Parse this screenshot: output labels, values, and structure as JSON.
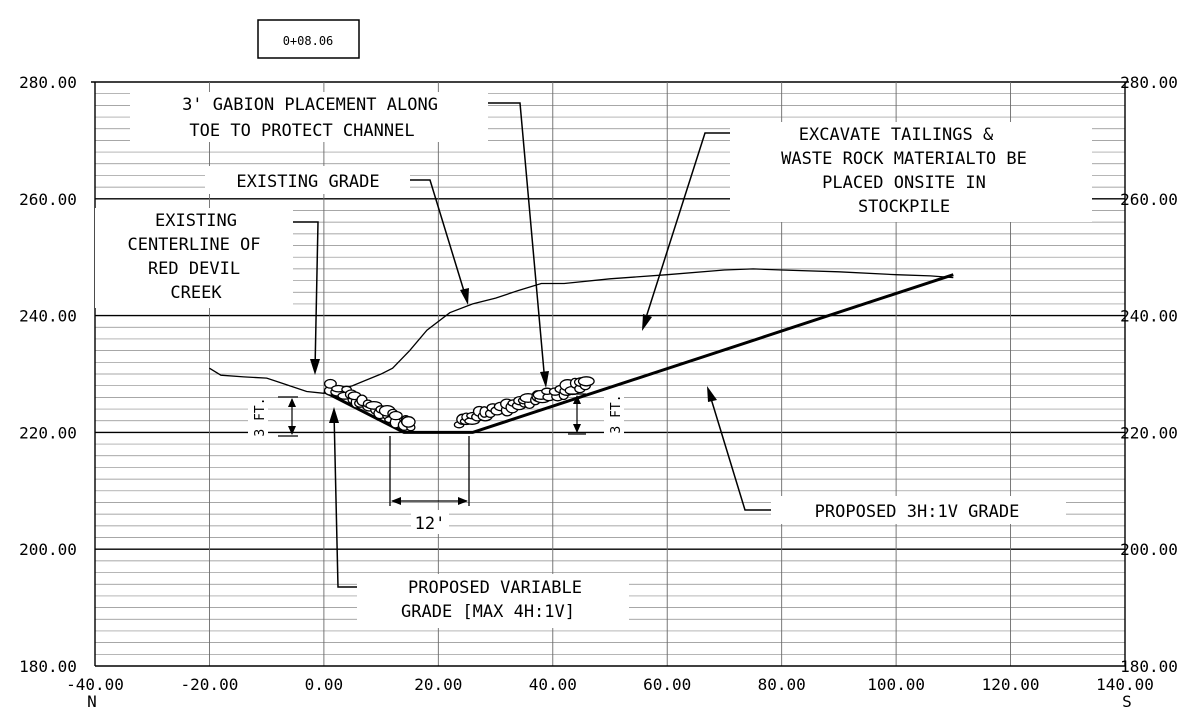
{
  "station_label": "0+08.06",
  "axes": {
    "x": {
      "min": -40,
      "max": 140,
      "ticks": [
        -40,
        -20,
        0,
        20,
        40,
        60,
        80,
        100,
        120,
        140
      ],
      "tick_labels": [
        "-40.00",
        "-20.00",
        "0.00",
        "20.00",
        "40.00",
        "60.00",
        "80.00",
        "100.00",
        "120.00",
        "140.00"
      ],
      "left_end_label": "N",
      "right_end_label": "S"
    },
    "y": {
      "min": 180,
      "max": 280,
      "ticks": [
        180,
        200,
        220,
        240,
        260,
        280
      ],
      "tick_labels": [
        "180.00",
        "200.00",
        "220.00",
        "240.00",
        "260.00",
        "280.00"
      ],
      "minor_step": 2
    }
  },
  "profiles": {
    "existing_grade": [
      [
        -20,
        231
      ],
      [
        -18,
        229.8
      ],
      [
        -14,
        229.5
      ],
      [
        -10,
        229.3
      ],
      [
        -6,
        228
      ],
      [
        -3,
        227
      ],
      [
        0,
        226.7
      ],
      [
        5,
        228
      ],
      [
        10,
        230
      ],
      [
        12,
        231
      ],
      [
        15,
        234
      ],
      [
        18,
        237.5
      ],
      [
        22,
        240.5
      ],
      [
        26,
        242
      ],
      [
        30,
        243
      ],
      [
        34,
        244.3
      ],
      [
        38,
        245.5
      ],
      [
        42,
        245.5
      ],
      [
        50,
        246.3
      ],
      [
        60,
        247
      ],
      [
        70,
        247.8
      ],
      [
        75,
        248
      ],
      [
        80,
        247.8
      ],
      [
        90,
        247.5
      ],
      [
        100,
        247
      ],
      [
        106,
        246.8
      ],
      [
        110,
        246.5
      ]
    ],
    "proposed_grade": [
      [
        0,
        227
      ],
      [
        14,
        220
      ],
      [
        26,
        220
      ],
      [
        110,
        247
      ]
    ]
  },
  "annotations": {
    "gabion": [
      "3' GABION PLACEMENT ALONG",
      "TOE TO PROTECT CHANNEL"
    ],
    "existing_grade": [
      "EXISTING GRADE"
    ],
    "excavate": [
      "EXCAVATE TAILINGS &",
      "WASTE ROCK MATERIALTO BE",
      "PLACED ONSITE IN",
      "STOCKPILE"
    ],
    "centerline": [
      "EXISTING",
      "CENTERLINE OF",
      "RED DEVIL",
      "CREEK"
    ],
    "proposed_3h1v": [
      "PROPOSED 3H:1V GRADE"
    ],
    "variable_grade": [
      "PROPOSED VARIABLE",
      "GRADE [MAX 4H:1V]"
    ],
    "gabion_height_left": "3 FT.",
    "gabion_height_right": "3 FT.",
    "channel_width": "12'"
  }
}
